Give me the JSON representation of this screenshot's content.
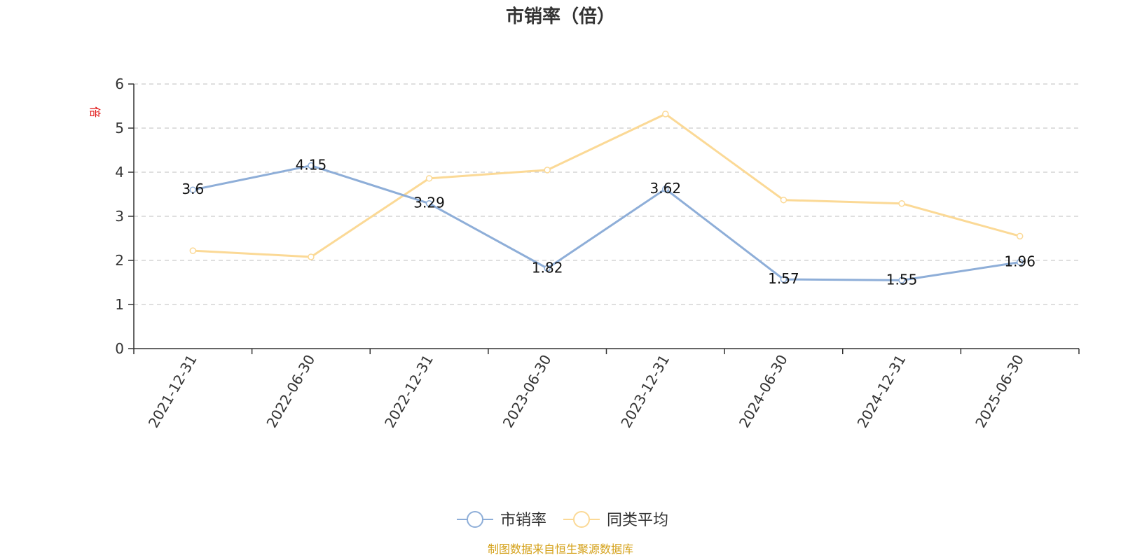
{
  "chart_data": {
    "type": "line",
    "title": "市销率（倍）",
    "ylabel": "倍",
    "ylim": [
      0,
      6
    ],
    "yticks": [
      0,
      1,
      2,
      3,
      4,
      5,
      6
    ],
    "grid": true,
    "legend_position": "bottom-center",
    "categories": [
      "2021-12-31",
      "2022-06-30",
      "2022-12-31",
      "2023-06-30",
      "2023-12-31",
      "2024-06-30",
      "2024-12-31",
      "2025-06-30"
    ],
    "series": [
      {
        "name": "市销率",
        "color": "#8eaed8",
        "values": [
          3.6,
          4.15,
          3.29,
          1.82,
          3.62,
          1.57,
          1.55,
          1.96
        ],
        "labels": [
          "3.6",
          "4.15",
          "3.29",
          "1.82",
          "3.62",
          "1.57",
          "1.55",
          "1.96"
        ]
      },
      {
        "name": "同类平均",
        "color": "#fbd996",
        "values": [
          2.22,
          2.08,
          3.86,
          4.05,
          5.32,
          3.37,
          3.29,
          2.55
        ]
      }
    ]
  },
  "source_note": "制图数据来自恒生聚源数据库"
}
